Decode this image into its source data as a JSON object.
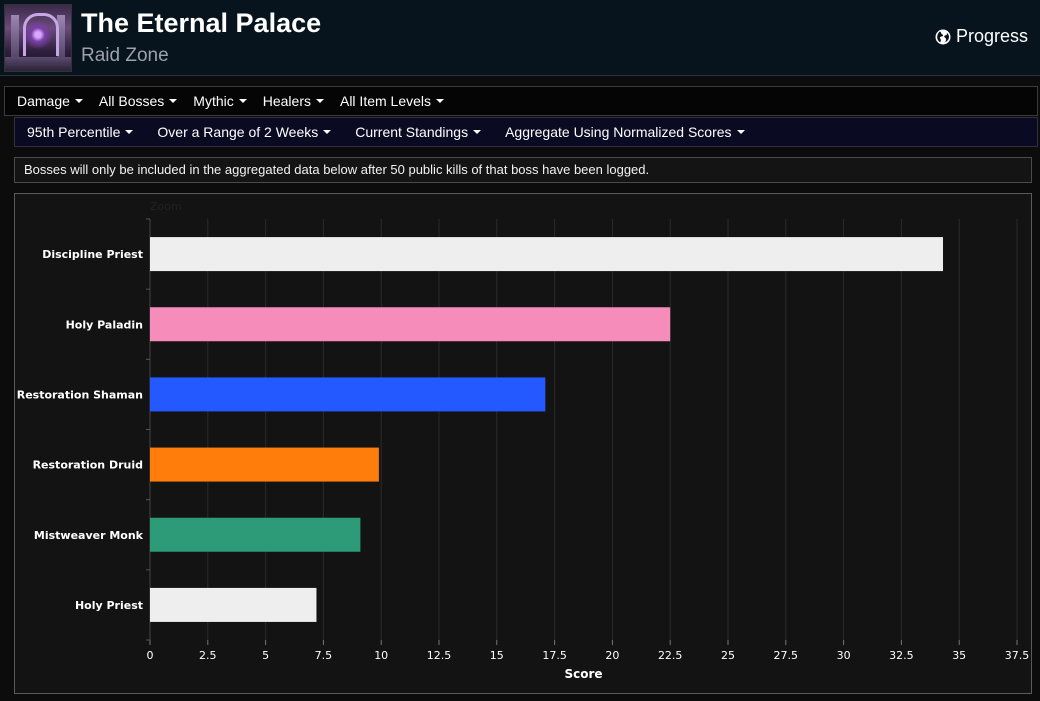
{
  "header": {
    "title": "The Eternal Palace",
    "subtitle": "Raid Zone",
    "progress_label": "Progress",
    "zone_image_icon": "eternal-palace-zone-image"
  },
  "filters_row1": [
    {
      "label": "Damage"
    },
    {
      "label": "All Bosses"
    },
    {
      "label": "Mythic"
    },
    {
      "label": "Healers"
    },
    {
      "label": "All Item Levels"
    }
  ],
  "filters_row2": [
    {
      "label": "95th Percentile"
    },
    {
      "label": "Over a Range of 2 Weeks"
    },
    {
      "label": "Current Standings"
    },
    {
      "label": "Aggregate Using Normalized Scores"
    }
  ],
  "notice": "Bosses will only be included in the aggregated data below after 50 public kills of that boss have been logged.",
  "chart_data": {
    "type": "bar",
    "orientation": "horizontal",
    "zoom_label": "Zoom",
    "categories": [
      "Discipline Priest",
      "Holy Paladin",
      "Restoration Shaman",
      "Restoration Druid",
      "Mistweaver Monk",
      "Holy Priest"
    ],
    "values": [
      34.3,
      22.5,
      17.1,
      9.9,
      9.1,
      7.2
    ],
    "colors": [
      "#eeeeee",
      "#f58cba",
      "#2459ff",
      "#ff7d0a",
      "#2d9b78",
      "#eeeeee"
    ],
    "xlabel": "Score",
    "xlim": [
      0,
      37.5
    ],
    "xticks": [
      "0",
      "2.5",
      "5",
      "7.5",
      "10",
      "12.5",
      "15",
      "17.5",
      "20",
      "22.5",
      "25",
      "27.5",
      "30",
      "32.5",
      "35",
      "37.5"
    ],
    "grid": true
  }
}
